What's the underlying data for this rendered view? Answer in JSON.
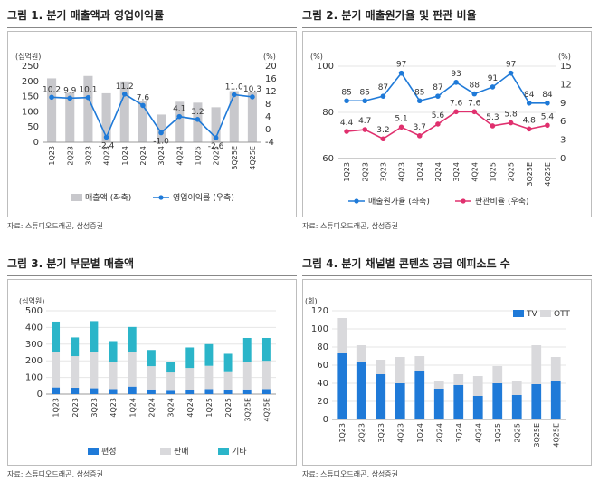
{
  "figures": [
    {
      "title": "그림 1. 분기 매출액과 영업이익률",
      "source": "자료: 스튜디오드래곤, 삼성증권"
    },
    {
      "title": "그림 2. 분기 매출원가율 및 판관 비율",
      "source": "자료: 스튜디오드래곤, 삼성증권"
    },
    {
      "title": "그림 3. 분기 부문별 매출액",
      "source": "자료: 스튜디오드래곤, 삼성증권"
    },
    {
      "title": "그림 4. 분기 채널별 콘텐츠 공급 에피소드 수",
      "source": "자료: 스튜디오드래곤, 삼성증권"
    }
  ],
  "chart_data": [
    {
      "type": "bar",
      "categories": [
        "1Q23",
        "2Q23",
        "3Q23",
        "4Q23",
        "1Q24",
        "2Q24",
        "3Q24",
        "4Q24",
        "1Q25",
        "2Q25",
        "3Q25E",
        "4Q25E"
      ],
      "left_unit": "(십억원)",
      "right_unit": "(%)",
      "ylim": [
        0,
        250
      ],
      "y2lim": [
        -4,
        20
      ],
      "yticks": [
        0,
        50,
        100,
        150,
        200,
        250
      ],
      "y2ticks": [
        -4,
        0,
        4,
        8,
        12,
        16,
        20
      ],
      "series": [
        {
          "name": "매출액 (좌축)",
          "type": "bar",
          "color": "#c8c8cc",
          "values": [
            210,
            162,
            218,
            161,
            200,
            135,
            91,
            133,
            130,
            115,
            168,
            165
          ]
        },
        {
          "name": "영업이익률 (우축)",
          "type": "line",
          "color": "#1f7ad8",
          "values": [
            10.2,
            9.9,
            10.1,
            -2.4,
            11.2,
            7.6,
            -1.0,
            4.1,
            3.2,
            -2.6,
            11.0,
            10.3
          ]
        }
      ]
    },
    {
      "type": "line",
      "categories": [
        "1Q23",
        "2Q23",
        "3Q23",
        "4Q23",
        "1Q24",
        "2Q24",
        "3Q24",
        "4Q24",
        "1Q25",
        "2Q25",
        "3Q25E",
        "4Q25E"
      ],
      "left_unit": "(%)",
      "right_unit": "(%)",
      "ylim": [
        60,
        100
      ],
      "y2lim": [
        0,
        15
      ],
      "yticks": [
        60,
        80,
        100
      ],
      "y2ticks": [
        0,
        3,
        6,
        9,
        12,
        15
      ],
      "series": [
        {
          "name": "매출원가율 (좌축)",
          "axis": "left",
          "color": "#1f7ad8",
          "values": [
            85,
            85,
            87,
            97,
            85,
            87,
            93,
            88,
            91,
            97,
            84,
            84
          ],
          "labels": [
            "85",
            "85",
            "87",
            "97",
            "85",
            "87",
            "93",
            "88",
            "91",
            "97",
            "84",
            "84"
          ]
        },
        {
          "name": "판관비율 (우축)",
          "axis": "right",
          "color": "#e0306e",
          "values": [
            4.4,
            4.7,
            3.2,
            5.1,
            3.7,
            5.6,
            7.6,
            7.6,
            5.3,
            5.8,
            4.8,
            5.4
          ],
          "labels": [
            "4.4",
            "4.7",
            "3.2",
            "5.1",
            "3.7",
            "5.6",
            "7.6",
            "7.6",
            "5.3",
            "5.8",
            "4.8",
            "5.4"
          ]
        }
      ]
    },
    {
      "type": "bar",
      "stacked": true,
      "categories": [
        "1Q23",
        "2Q23",
        "3Q23",
        "4Q23",
        "1Q24",
        "2Q24",
        "3Q24",
        "4Q24",
        "1Q25",
        "2Q25",
        "3Q25E",
        "4Q25E"
      ],
      "left_unit": "(십억원)",
      "ylim": [
        0,
        500
      ],
      "yticks": [
        0,
        100,
        200,
        300,
        400,
        500
      ],
      "series": [
        {
          "name": "편성",
          "color": "#1f7ad8",
          "values": [
            40,
            38,
            35,
            30,
            45,
            28,
            20,
            25,
            30,
            22,
            28,
            30
          ]
        },
        {
          "name": "판매",
          "color": "#d9d9dc",
          "values": [
            215,
            190,
            215,
            165,
            205,
            140,
            110,
            132,
            140,
            110,
            167,
            170
          ]
        },
        {
          "name": "기타",
          "color": "#2bb5c9",
          "values": [
            180,
            112,
            188,
            123,
            153,
            97,
            65,
            123,
            130,
            110,
            142,
            137
          ]
        }
      ]
    },
    {
      "type": "bar",
      "stacked": true,
      "categories": [
        "1Q23",
        "2Q23",
        "3Q23",
        "4Q23",
        "1Q24",
        "2Q24",
        "3Q24",
        "4Q24",
        "1Q25",
        "2Q25",
        "3Q25E",
        "4Q25E"
      ],
      "left_unit": "(회)",
      "ylim": [
        0,
        120
      ],
      "yticks": [
        0,
        20,
        40,
        60,
        80,
        100,
        120
      ],
      "series": [
        {
          "name": "TV",
          "color": "#1f7ad8",
          "values": [
            73,
            64,
            50,
            40,
            54,
            34,
            38,
            26,
            40,
            27,
            39,
            43
          ]
        },
        {
          "name": "OTT",
          "color": "#d9d9dc",
          "values": [
            39,
            18,
            16,
            29,
            16,
            8,
            12,
            22,
            19,
            15,
            43,
            26
          ]
        }
      ]
    }
  ]
}
